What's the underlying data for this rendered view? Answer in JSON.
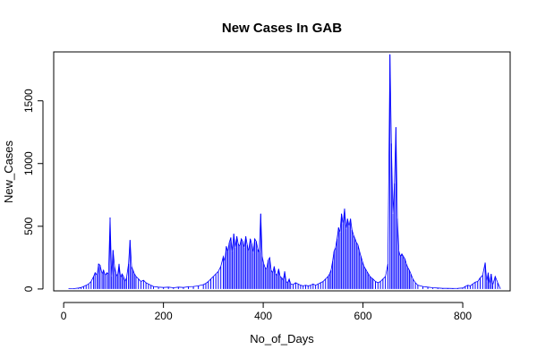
{
  "chart_data": {
    "type": "line",
    "style": "histogram-spikes",
    "title": "New Cases In GAB",
    "xlabel": "No_of_Days",
    "ylabel": "New_Cases",
    "xlim": [
      -20,
      895
    ],
    "ylim": [
      -15,
      1890
    ],
    "xticks": [
      0,
      200,
      400,
      600,
      800
    ],
    "yticks": [
      0,
      500,
      1000,
      1500
    ],
    "line_color": "#0000ff",
    "series": [
      {
        "points": [
          [
            10,
            2
          ],
          [
            20,
            3
          ],
          [
            30,
            8
          ],
          [
            35,
            12
          ],
          [
            40,
            20
          ],
          [
            45,
            30
          ],
          [
            50,
            40
          ],
          [
            55,
            60
          ],
          [
            60,
            100
          ],
          [
            63,
            130
          ],
          [
            67,
            110
          ],
          [
            70,
            200
          ],
          [
            73,
            190
          ],
          [
            77,
            120
          ],
          [
            80,
            150
          ],
          [
            83,
            110
          ],
          [
            87,
            130
          ],
          [
            90,
            120
          ],
          [
            93,
            570
          ],
          [
            96,
            100
          ],
          [
            99,
            310
          ],
          [
            102,
            180
          ],
          [
            105,
            120
          ],
          [
            108,
            100
          ],
          [
            111,
            200
          ],
          [
            114,
            90
          ],
          [
            117,
            120
          ],
          [
            120,
            100
          ],
          [
            123,
            60
          ],
          [
            126,
            90
          ],
          [
            130,
            200
          ],
          [
            133,
            390
          ],
          [
            136,
            180
          ],
          [
            139,
            150
          ],
          [
            142,
            120
          ],
          [
            145,
            100
          ],
          [
            150,
            80
          ],
          [
            155,
            60
          ],
          [
            160,
            70
          ],
          [
            165,
            50
          ],
          [
            170,
            40
          ],
          [
            175,
            30
          ],
          [
            180,
            20
          ],
          [
            190,
            15
          ],
          [
            200,
            12
          ],
          [
            210,
            15
          ],
          [
            220,
            10
          ],
          [
            230,
            15
          ],
          [
            240,
            12
          ],
          [
            250,
            18
          ],
          [
            260,
            20
          ],
          [
            270,
            25
          ],
          [
            280,
            35
          ],
          [
            285,
            45
          ],
          [
            290,
            60
          ],
          [
            295,
            80
          ],
          [
            300,
            100
          ],
          [
            305,
            120
          ],
          [
            310,
            140
          ],
          [
            315,
            180
          ],
          [
            320,
            260
          ],
          [
            323,
            220
          ],
          [
            326,
            340
          ],
          [
            329,
            300
          ],
          [
            332,
            370
          ],
          [
            335,
            410
          ],
          [
            338,
            300
          ],
          [
            341,
            440
          ],
          [
            344,
            330
          ],
          [
            347,
            420
          ],
          [
            350,
            360
          ],
          [
            353,
            340
          ],
          [
            356,
            400
          ],
          [
            359,
            380
          ],
          [
            362,
            330
          ],
          [
            365,
            420
          ],
          [
            368,
            350
          ],
          [
            371,
            300
          ],
          [
            374,
            400
          ],
          [
            377,
            360
          ],
          [
            380,
            290
          ],
          [
            383,
            400
          ],
          [
            386,
            380
          ],
          [
            389,
            320
          ],
          [
            392,
            290
          ],
          [
            395,
            600
          ],
          [
            398,
            260
          ],
          [
            401,
            200
          ],
          [
            404,
            170
          ],
          [
            407,
            160
          ],
          [
            410,
            230
          ],
          [
            413,
            250
          ],
          [
            416,
            150
          ],
          [
            419,
            130
          ],
          [
            422,
            180
          ],
          [
            425,
            120
          ],
          [
            428,
            110
          ],
          [
            431,
            160
          ],
          [
            434,
            100
          ],
          [
            437,
            90
          ],
          [
            440,
            70
          ],
          [
            443,
            140
          ],
          [
            446,
            60
          ],
          [
            449,
            50
          ],
          [
            452,
            80
          ],
          [
            455,
            40
          ],
          [
            460,
            35
          ],
          [
            465,
            50
          ],
          [
            470,
            40
          ],
          [
            475,
            30
          ],
          [
            480,
            25
          ],
          [
            485,
            30
          ],
          [
            490,
            25
          ],
          [
            495,
            30
          ],
          [
            500,
            40
          ],
          [
            505,
            30
          ],
          [
            510,
            40
          ],
          [
            515,
            50
          ],
          [
            520,
            60
          ],
          [
            525,
            80
          ],
          [
            530,
            100
          ],
          [
            533,
            120
          ],
          [
            536,
            150
          ],
          [
            539,
            220
          ],
          [
            542,
            300
          ],
          [
            545,
            330
          ],
          [
            548,
            400
          ],
          [
            551,
            490
          ],
          [
            554,
            450
          ],
          [
            557,
            600
          ],
          [
            560,
            520
          ],
          [
            563,
            640
          ],
          [
            566,
            480
          ],
          [
            569,
            560
          ],
          [
            572,
            500
          ],
          [
            575,
            560
          ],
          [
            578,
            470
          ],
          [
            581,
            430
          ],
          [
            584,
            400
          ],
          [
            587,
            370
          ],
          [
            590,
            350
          ],
          [
            593,
            300
          ],
          [
            596,
            260
          ],
          [
            599,
            220
          ],
          [
            602,
            180
          ],
          [
            605,
            160
          ],
          [
            608,
            140
          ],
          [
            611,
            120
          ],
          [
            614,
            100
          ],
          [
            617,
            90
          ],
          [
            620,
            80
          ],
          [
            625,
            60
          ],
          [
            630,
            50
          ],
          [
            635,
            60
          ],
          [
            640,
            80
          ],
          [
            645,
            100
          ],
          [
            650,
            200
          ],
          [
            654,
            1870
          ],
          [
            657,
            1160
          ],
          [
            660,
            600
          ],
          [
            663,
            840
          ],
          [
            666,
            1290
          ],
          [
            669,
            560
          ],
          [
            672,
            300
          ],
          [
            675,
            260
          ],
          [
            678,
            280
          ],
          [
            681,
            260
          ],
          [
            684,
            240
          ],
          [
            687,
            200
          ],
          [
            690,
            170
          ],
          [
            693,
            150
          ],
          [
            696,
            120
          ],
          [
            700,
            80
          ],
          [
            705,
            50
          ],
          [
            710,
            30
          ],
          [
            720,
            20
          ],
          [
            730,
            15
          ],
          [
            740,
            10
          ],
          [
            750,
            8
          ],
          [
            760,
            5
          ],
          [
            770,
            5
          ],
          [
            780,
            4
          ],
          [
            790,
            5
          ],
          [
            800,
            8
          ],
          [
            805,
            20
          ],
          [
            810,
            30
          ],
          [
            815,
            25
          ],
          [
            820,
            40
          ],
          [
            825,
            55
          ],
          [
            830,
            60
          ],
          [
            835,
            90
          ],
          [
            840,
            110
          ],
          [
            845,
            210
          ],
          [
            848,
            60
          ],
          [
            851,
            130
          ],
          [
            854,
            40
          ],
          [
            857,
            120
          ],
          [
            860,
            30
          ],
          [
            865,
            100
          ],
          [
            870,
            50
          ],
          [
            875,
            5
          ]
        ]
      }
    ]
  }
}
